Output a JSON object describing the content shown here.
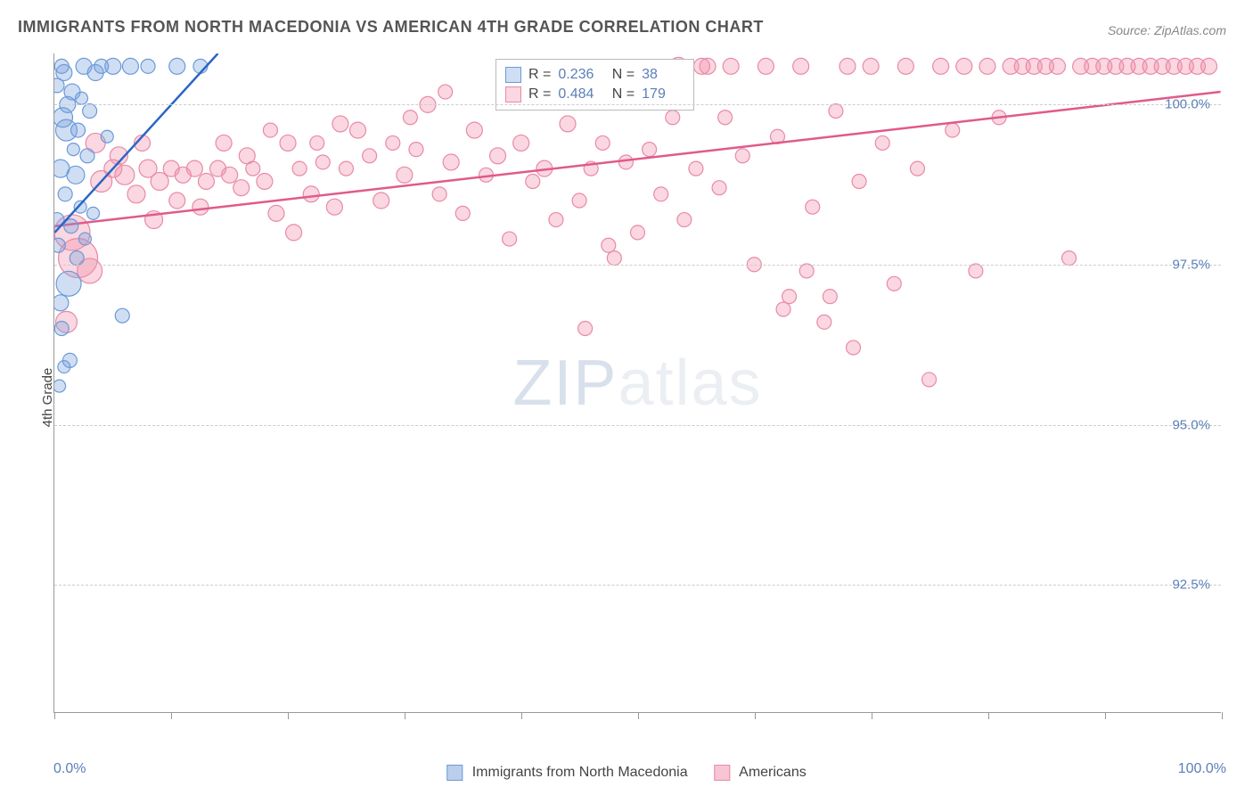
{
  "title": "IMMIGRANTS FROM NORTH MACEDONIA VS AMERICAN 4TH GRADE CORRELATION CHART",
  "source": "Source: ZipAtlas.com",
  "ylabel": "4th Grade",
  "type": "scatter",
  "xlim": [
    0,
    100
  ],
  "ylim": [
    90.5,
    100.8
  ],
  "xtick_positions": [
    0,
    10,
    20,
    30,
    40,
    50,
    60,
    70,
    80,
    90,
    100
  ],
  "yticks": [
    92.5,
    95.0,
    97.5,
    100.0
  ],
  "ytick_labels": [
    "92.5%",
    "95.0%",
    "97.5%",
    "100.0%"
  ],
  "xaxis_min_label": "0.0%",
  "xaxis_max_label": "100.0%",
  "grid_color": "#cccccc",
  "axis_color": "#999999",
  "background_color": "#ffffff",
  "label_color": "#5b7fb8",
  "title_color": "#555555",
  "title_fontsize": 18,
  "label_fontsize": 15,
  "watermark_text_a": "ZIP",
  "watermark_text_b": "atlas",
  "series": [
    {
      "name": "Immigrants from North Macedonia",
      "fill": "rgba(120,160,220,0.35)",
      "stroke": "#6a9ad8",
      "line_color": "#2a66c4",
      "R": "0.236",
      "N": "38",
      "trend": {
        "x1": 0,
        "y1": 98.0,
        "x2": 14,
        "y2": 100.8
      },
      "points": [
        {
          "x": 0.2,
          "y": 98.2,
          "r": 8
        },
        {
          "x": 0.5,
          "y": 99.0,
          "r": 10
        },
        {
          "x": 0.8,
          "y": 100.5,
          "r": 9
        },
        {
          "x": 1.0,
          "y": 99.6,
          "r": 12
        },
        {
          "x": 1.2,
          "y": 97.2,
          "r": 14
        },
        {
          "x": 0.3,
          "y": 97.8,
          "r": 8
        },
        {
          "x": 1.5,
          "y": 100.2,
          "r": 9
        },
        {
          "x": 2.0,
          "y": 99.6,
          "r": 8
        },
        {
          "x": 2.2,
          "y": 98.4,
          "r": 7
        },
        {
          "x": 2.5,
          "y": 100.6,
          "r": 9
        },
        {
          "x": 0.6,
          "y": 96.5,
          "r": 8
        },
        {
          "x": 1.8,
          "y": 98.9,
          "r": 10
        },
        {
          "x": 3.0,
          "y": 99.9,
          "r": 8
        },
        {
          "x": 3.5,
          "y": 100.5,
          "r": 9
        },
        {
          "x": 0.4,
          "y": 95.6,
          "r": 7
        },
        {
          "x": 1.3,
          "y": 96.0,
          "r": 8
        },
        {
          "x": 4.0,
          "y": 100.6,
          "r": 8
        },
        {
          "x": 5.0,
          "y": 100.6,
          "r": 9
        },
        {
          "x": 6.5,
          "y": 100.6,
          "r": 9
        },
        {
          "x": 8.0,
          "y": 100.6,
          "r": 8
        },
        {
          "x": 10.5,
          "y": 100.6,
          "r": 9
        },
        {
          "x": 12.5,
          "y": 100.6,
          "r": 8
        },
        {
          "x": 0.7,
          "y": 99.8,
          "r": 11
        },
        {
          "x": 1.1,
          "y": 100.0,
          "r": 9
        },
        {
          "x": 0.9,
          "y": 98.6,
          "r": 8
        },
        {
          "x": 1.6,
          "y": 99.3,
          "r": 7
        },
        {
          "x": 2.8,
          "y": 99.2,
          "r": 8
        },
        {
          "x": 0.2,
          "y": 100.3,
          "r": 8
        },
        {
          "x": 5.8,
          "y": 96.7,
          "r": 8
        },
        {
          "x": 0.5,
          "y": 96.9,
          "r": 9
        },
        {
          "x": 2.3,
          "y": 100.1,
          "r": 7
        },
        {
          "x": 1.9,
          "y": 97.6,
          "r": 8
        },
        {
          "x": 3.3,
          "y": 98.3,
          "r": 7
        },
        {
          "x": 0.8,
          "y": 95.9,
          "r": 7
        },
        {
          "x": 1.4,
          "y": 98.1,
          "r": 8
        },
        {
          "x": 4.5,
          "y": 99.5,
          "r": 7
        },
        {
          "x": 0.6,
          "y": 100.6,
          "r": 8
        },
        {
          "x": 2.6,
          "y": 97.9,
          "r": 7
        }
      ]
    },
    {
      "name": "Americans",
      "fill": "rgba(240,140,170,0.35)",
      "stroke": "#e88aa8",
      "line_color": "#e05a8a",
      "R": "0.484",
      "N": "179",
      "trend": {
        "x1": 0,
        "y1": 98.1,
        "x2": 100,
        "y2": 100.2
      },
      "points": [
        {
          "x": 1.5,
          "y": 98.0,
          "r": 20
        },
        {
          "x": 2.0,
          "y": 97.6,
          "r": 22
        },
        {
          "x": 3.0,
          "y": 97.4,
          "r": 14
        },
        {
          "x": 1.0,
          "y": 96.6,
          "r": 12
        },
        {
          "x": 4.0,
          "y": 98.8,
          "r": 12
        },
        {
          "x": 5.0,
          "y": 99.0,
          "r": 10
        },
        {
          "x": 6.0,
          "y": 98.9,
          "r": 11
        },
        {
          "x": 7.0,
          "y": 98.6,
          "r": 10
        },
        {
          "x": 8.0,
          "y": 99.0,
          "r": 10
        },
        {
          "x": 9.0,
          "y": 98.8,
          "r": 10
        },
        {
          "x": 10.0,
          "y": 99.0,
          "r": 9
        },
        {
          "x": 11.0,
          "y": 98.9,
          "r": 9
        },
        {
          "x": 12.0,
          "y": 99.0,
          "r": 9
        },
        {
          "x": 13.0,
          "y": 98.8,
          "r": 9
        },
        {
          "x": 14.0,
          "y": 99.0,
          "r": 9
        },
        {
          "x": 15.0,
          "y": 98.9,
          "r": 9
        },
        {
          "x": 16.0,
          "y": 98.7,
          "r": 9
        },
        {
          "x": 17.0,
          "y": 99.0,
          "r": 8
        },
        {
          "x": 18.0,
          "y": 98.8,
          "r": 9
        },
        {
          "x": 19.0,
          "y": 98.3,
          "r": 9
        },
        {
          "x": 20.0,
          "y": 99.4,
          "r": 9
        },
        {
          "x": 21.0,
          "y": 99.0,
          "r": 8
        },
        {
          "x": 22.0,
          "y": 98.6,
          "r": 9
        },
        {
          "x": 23.0,
          "y": 99.1,
          "r": 8
        },
        {
          "x": 24.0,
          "y": 98.4,
          "r": 9
        },
        {
          "x": 25.0,
          "y": 99.0,
          "r": 8
        },
        {
          "x": 26.0,
          "y": 99.6,
          "r": 9
        },
        {
          "x": 27.0,
          "y": 99.2,
          "r": 8
        },
        {
          "x": 28.0,
          "y": 98.5,
          "r": 9
        },
        {
          "x": 29.0,
          "y": 99.4,
          "r": 8
        },
        {
          "x": 30.0,
          "y": 98.9,
          "r": 9
        },
        {
          "x": 31.0,
          "y": 99.3,
          "r": 8
        },
        {
          "x": 32.0,
          "y": 100.0,
          "r": 9
        },
        {
          "x": 33.0,
          "y": 98.6,
          "r": 8
        },
        {
          "x": 34.0,
          "y": 99.1,
          "r": 9
        },
        {
          "x": 35.0,
          "y": 98.3,
          "r": 8
        },
        {
          "x": 36.0,
          "y": 99.6,
          "r": 9
        },
        {
          "x": 37.0,
          "y": 98.9,
          "r": 8
        },
        {
          "x": 38.0,
          "y": 99.2,
          "r": 9
        },
        {
          "x": 39.0,
          "y": 97.9,
          "r": 8
        },
        {
          "x": 40.0,
          "y": 99.4,
          "r": 9
        },
        {
          "x": 41.0,
          "y": 98.8,
          "r": 8
        },
        {
          "x": 42.0,
          "y": 99.0,
          "r": 9
        },
        {
          "x": 43.0,
          "y": 98.2,
          "r": 8
        },
        {
          "x": 44.0,
          "y": 99.7,
          "r": 9
        },
        {
          "x": 45.0,
          "y": 98.5,
          "r": 8
        },
        {
          "x": 46.0,
          "y": 99.0,
          "r": 8
        },
        {
          "x": 47.0,
          "y": 99.4,
          "r": 8
        },
        {
          "x": 48.0,
          "y": 97.6,
          "r": 8
        },
        {
          "x": 49.0,
          "y": 99.1,
          "r": 8
        },
        {
          "x": 50.0,
          "y": 98.0,
          "r": 8
        },
        {
          "x": 51.0,
          "y": 99.3,
          "r": 8
        },
        {
          "x": 52.0,
          "y": 98.6,
          "r": 8
        },
        {
          "x": 53.0,
          "y": 99.8,
          "r": 8
        },
        {
          "x": 54.0,
          "y": 98.2,
          "r": 8
        },
        {
          "x": 55.0,
          "y": 99.0,
          "r": 8
        },
        {
          "x": 56.0,
          "y": 100.6,
          "r": 9
        },
        {
          "x": 57.0,
          "y": 98.7,
          "r": 8
        },
        {
          "x": 58.0,
          "y": 100.6,
          "r": 9
        },
        {
          "x": 59.0,
          "y": 99.2,
          "r": 8
        },
        {
          "x": 60.0,
          "y": 97.5,
          "r": 8
        },
        {
          "x": 61.0,
          "y": 100.6,
          "r": 9
        },
        {
          "x": 62.0,
          "y": 99.5,
          "r": 8
        },
        {
          "x": 63.0,
          "y": 97.0,
          "r": 8
        },
        {
          "x": 64.0,
          "y": 100.6,
          "r": 9
        },
        {
          "x": 65.0,
          "y": 98.4,
          "r": 8
        },
        {
          "x": 66.0,
          "y": 96.6,
          "r": 8
        },
        {
          "x": 67.0,
          "y": 99.9,
          "r": 8
        },
        {
          "x": 68.0,
          "y": 100.6,
          "r": 9
        },
        {
          "x": 69.0,
          "y": 98.8,
          "r": 8
        },
        {
          "x": 70.0,
          "y": 100.6,
          "r": 9
        },
        {
          "x": 71.0,
          "y": 99.4,
          "r": 8
        },
        {
          "x": 72.0,
          "y": 97.2,
          "r": 8
        },
        {
          "x": 73.0,
          "y": 100.6,
          "r": 9
        },
        {
          "x": 74.0,
          "y": 99.0,
          "r": 8
        },
        {
          "x": 75.0,
          "y": 95.7,
          "r": 8
        },
        {
          "x": 76.0,
          "y": 100.6,
          "r": 9
        },
        {
          "x": 77.0,
          "y": 99.6,
          "r": 8
        },
        {
          "x": 78.0,
          "y": 100.6,
          "r": 9
        },
        {
          "x": 79.0,
          "y": 97.4,
          "r": 8
        },
        {
          "x": 80.0,
          "y": 100.6,
          "r": 9
        },
        {
          "x": 81.0,
          "y": 99.8,
          "r": 8
        },
        {
          "x": 82.0,
          "y": 100.6,
          "r": 9
        },
        {
          "x": 83.0,
          "y": 100.6,
          "r": 9
        },
        {
          "x": 84.0,
          "y": 100.6,
          "r": 9
        },
        {
          "x": 85.0,
          "y": 100.6,
          "r": 9
        },
        {
          "x": 86.0,
          "y": 100.6,
          "r": 9
        },
        {
          "x": 87.0,
          "y": 97.6,
          "r": 8
        },
        {
          "x": 88.0,
          "y": 100.6,
          "r": 9
        },
        {
          "x": 89.0,
          "y": 100.6,
          "r": 9
        },
        {
          "x": 90.0,
          "y": 100.6,
          "r": 9
        },
        {
          "x": 91.0,
          "y": 100.6,
          "r": 9
        },
        {
          "x": 92.0,
          "y": 100.6,
          "r": 9
        },
        {
          "x": 93.0,
          "y": 100.6,
          "r": 9
        },
        {
          "x": 94.0,
          "y": 100.6,
          "r": 9
        },
        {
          "x": 95.0,
          "y": 100.6,
          "r": 9
        },
        {
          "x": 96.0,
          "y": 100.6,
          "r": 9
        },
        {
          "x": 97.0,
          "y": 100.6,
          "r": 9
        },
        {
          "x": 98.0,
          "y": 100.6,
          "r": 9
        },
        {
          "x": 99.0,
          "y": 100.6,
          "r": 9
        },
        {
          "x": 62.5,
          "y": 96.8,
          "r": 8
        },
        {
          "x": 64.5,
          "y": 97.4,
          "r": 8
        },
        {
          "x": 66.5,
          "y": 97.0,
          "r": 8
        },
        {
          "x": 68.5,
          "y": 96.2,
          "r": 8
        },
        {
          "x": 45.5,
          "y": 96.5,
          "r": 8
        },
        {
          "x": 47.5,
          "y": 97.8,
          "r": 8
        },
        {
          "x": 30.5,
          "y": 99.8,
          "r": 8
        },
        {
          "x": 33.5,
          "y": 100.2,
          "r": 8
        },
        {
          "x": 8.5,
          "y": 98.2,
          "r": 10
        },
        {
          "x": 10.5,
          "y": 98.5,
          "r": 9
        },
        {
          "x": 12.5,
          "y": 98.4,
          "r": 9
        },
        {
          "x": 3.5,
          "y": 99.4,
          "r": 11
        },
        {
          "x": 5.5,
          "y": 99.2,
          "r": 10
        },
        {
          "x": 7.5,
          "y": 99.4,
          "r": 9
        },
        {
          "x": 53.5,
          "y": 100.6,
          "r": 10
        },
        {
          "x": 55.5,
          "y": 100.6,
          "r": 9
        },
        {
          "x": 57.5,
          "y": 99.8,
          "r": 8
        },
        {
          "x": 14.5,
          "y": 99.4,
          "r": 9
        },
        {
          "x": 16.5,
          "y": 99.2,
          "r": 9
        },
        {
          "x": 18.5,
          "y": 99.6,
          "r": 8
        },
        {
          "x": 20.5,
          "y": 98.0,
          "r": 9
        },
        {
          "x": 22.5,
          "y": 99.4,
          "r": 8
        },
        {
          "x": 24.5,
          "y": 99.7,
          "r": 9
        }
      ]
    }
  ],
  "legend_bottom": [
    {
      "label": "Immigrants from North Macedonia",
      "fill": "rgba(120,160,220,0.5)",
      "stroke": "#6a9ad8"
    },
    {
      "label": "Americans",
      "fill": "rgba(240,140,170,0.5)",
      "stroke": "#e88aa8"
    }
  ]
}
